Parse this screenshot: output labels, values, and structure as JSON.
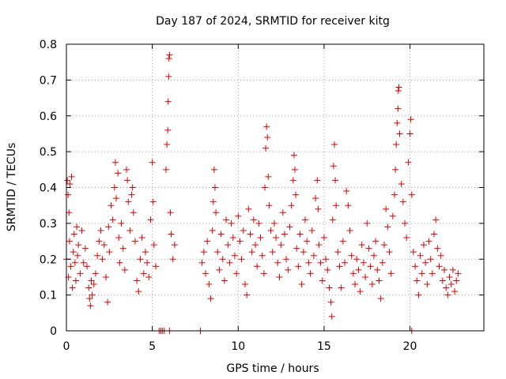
{
  "chart_data": {
    "type": "scatter",
    "title": "Day 187 of 2024, SRMTID for receiver kitg",
    "xlabel": "GPS time / hours",
    "ylabel": "SRMTID / TECUs",
    "xlim": [
      0,
      24.3
    ],
    "ylim": [
      0,
      0.8
    ],
    "xticks": [
      0,
      5,
      10,
      15,
      20
    ],
    "xtick_labels": [
      "0",
      "5",
      "10",
      "15",
      "20"
    ],
    "yticks": [
      0,
      0.1,
      0.2,
      0.3,
      0.4,
      0.5,
      0.6,
      0.7,
      0.8
    ],
    "ytick_labels": [
      "0",
      "0.1",
      "0.2",
      "0.3",
      "0.4",
      "0.5",
      "0.6",
      "0.7",
      "0.8"
    ],
    "grid": true,
    "marker": "+",
    "color": "#dd0000",
    "series": [
      {
        "name": "SRMTID kitg",
        "points": [
          [
            0.0,
            0.2
          ],
          [
            0.05,
            0.42
          ],
          [
            0.1,
            0.38
          ],
          [
            0.12,
            0.15
          ],
          [
            0.15,
            0.33
          ],
          [
            0.18,
            0.25
          ],
          [
            0.2,
            0.41
          ],
          [
            0.25,
            0.18
          ],
          [
            0.3,
            0.43
          ],
          [
            0.35,
            0.12
          ],
          [
            0.4,
            0.22
          ],
          [
            0.45,
            0.27
          ],
          [
            0.5,
            0.19
          ],
          [
            0.55,
            0.14
          ],
          [
            0.6,
            0.29
          ],
          [
            0.65,
            0.21
          ],
          [
            0.7,
            0.24
          ],
          [
            0.8,
            0.16
          ],
          [
            0.9,
            0.28
          ],
          [
            1.0,
            0.19
          ],
          [
            1.1,
            0.23
          ],
          [
            1.2,
            0.18
          ],
          [
            1.3,
            0.12
          ],
          [
            1.35,
            0.09
          ],
          [
            1.4,
            0.07
          ],
          [
            1.45,
            0.14
          ],
          [
            1.5,
            0.1
          ],
          [
            1.6,
            0.13
          ],
          [
            1.7,
            0.16
          ],
          [
            1.8,
            0.21
          ],
          [
            1.9,
            0.25
          ],
          [
            2.0,
            0.28
          ],
          [
            2.1,
            0.2
          ],
          [
            2.2,
            0.24
          ],
          [
            2.3,
            0.15
          ],
          [
            2.4,
            0.08
          ],
          [
            2.45,
            0.29
          ],
          [
            2.5,
            0.22
          ],
          [
            2.6,
            0.35
          ],
          [
            2.7,
            0.31
          ],
          [
            2.8,
            0.4
          ],
          [
            2.85,
            0.47
          ],
          [
            2.9,
            0.37
          ],
          [
            3.0,
            0.44
          ],
          [
            3.05,
            0.26
          ],
          [
            3.1,
            0.19
          ],
          [
            3.2,
            0.3
          ],
          [
            3.3,
            0.23
          ],
          [
            3.4,
            0.17
          ],
          [
            3.5,
            0.45
          ],
          [
            3.55,
            0.42
          ],
          [
            3.6,
            0.36
          ],
          [
            3.7,
            0.28
          ],
          [
            3.8,
            0.38
          ],
          [
            3.85,
            0.4
          ],
          [
            3.9,
            0.33
          ],
          [
            4.0,
            0.25
          ],
          [
            4.1,
            0.14
          ],
          [
            4.2,
            0.11
          ],
          [
            4.3,
            0.2
          ],
          [
            4.4,
            0.26
          ],
          [
            4.5,
            0.16
          ],
          [
            4.6,
            0.22
          ],
          [
            4.7,
            0.19
          ],
          [
            4.8,
            0.15
          ],
          [
            4.9,
            0.31
          ],
          [
            5.0,
            0.47
          ],
          [
            5.05,
            0.36
          ],
          [
            5.1,
            0.24
          ],
          [
            5.2,
            0.18
          ],
          [
            5.8,
            0.45
          ],
          [
            5.85,
            0.52
          ],
          [
            5.9,
            0.56
          ],
          [
            5.92,
            0.64
          ],
          [
            5.95,
            0.71
          ],
          [
            5.97,
            0.76
          ],
          [
            6.0,
            0.77
          ],
          [
            6.05,
            0.33
          ],
          [
            6.1,
            0.27
          ],
          [
            6.2,
            0.2
          ],
          [
            6.3,
            0.24
          ],
          [
            7.9,
            0.19
          ],
          [
            8.0,
            0.22
          ],
          [
            8.1,
            0.16
          ],
          [
            8.2,
            0.25
          ],
          [
            8.3,
            0.13
          ],
          [
            8.4,
            0.09
          ],
          [
            8.5,
            0.28
          ],
          [
            8.55,
            0.36
          ],
          [
            8.6,
            0.45
          ],
          [
            8.65,
            0.4
          ],
          [
            8.7,
            0.33
          ],
          [
            8.8,
            0.22
          ],
          [
            8.9,
            0.17
          ],
          [
            9.0,
            0.27
          ],
          [
            9.1,
            0.2
          ],
          [
            9.2,
            0.14
          ],
          [
            9.3,
            0.31
          ],
          [
            9.4,
            0.24
          ],
          [
            9.5,
            0.19
          ],
          [
            9.6,
            0.3
          ],
          [
            9.7,
            0.26
          ],
          [
            9.8,
            0.21
          ],
          [
            9.9,
            0.16
          ],
          [
            10.0,
            0.32
          ],
          [
            10.1,
            0.25
          ],
          [
            10.2,
            0.2
          ],
          [
            10.3,
            0.28
          ],
          [
            10.4,
            0.13
          ],
          [
            10.5,
            0.1
          ],
          [
            10.6,
            0.34
          ],
          [
            10.7,
            0.27
          ],
          [
            10.8,
            0.22
          ],
          [
            10.9,
            0.31
          ],
          [
            11.0,
            0.24
          ],
          [
            11.1,
            0.18
          ],
          [
            11.2,
            0.3
          ],
          [
            11.3,
            0.26
          ],
          [
            11.4,
            0.21
          ],
          [
            11.5,
            0.16
          ],
          [
            11.55,
            0.4
          ],
          [
            11.6,
            0.51
          ],
          [
            11.65,
            0.57
          ],
          [
            11.7,
            0.54
          ],
          [
            11.75,
            0.43
          ],
          [
            11.8,
            0.35
          ],
          [
            11.9,
            0.28
          ],
          [
            12.0,
            0.22
          ],
          [
            12.1,
            0.3
          ],
          [
            12.2,
            0.26
          ],
          [
            12.3,
            0.19
          ],
          [
            12.4,
            0.15
          ],
          [
            12.5,
            0.24
          ],
          [
            12.6,
            0.33
          ],
          [
            12.7,
            0.27
          ],
          [
            12.8,
            0.2
          ],
          [
            12.9,
            0.17
          ],
          [
            13.0,
            0.29
          ],
          [
            13.1,
            0.35
          ],
          [
            13.2,
            0.42
          ],
          [
            13.25,
            0.49
          ],
          [
            13.3,
            0.45
          ],
          [
            13.35,
            0.38
          ],
          [
            13.4,
            0.23
          ],
          [
            13.5,
            0.18
          ],
          [
            13.6,
            0.27
          ],
          [
            13.7,
            0.13
          ],
          [
            13.8,
            0.22
          ],
          [
            13.9,
            0.31
          ],
          [
            14.0,
            0.25
          ],
          [
            14.1,
            0.19
          ],
          [
            14.2,
            0.16
          ],
          [
            14.3,
            0.28
          ],
          [
            14.4,
            0.21
          ],
          [
            14.5,
            0.37
          ],
          [
            14.6,
            0.42
          ],
          [
            14.65,
            0.34
          ],
          [
            14.7,
            0.24
          ],
          [
            14.8,
            0.19
          ],
          [
            14.9,
            0.14
          ],
          [
            15.0,
            0.26
          ],
          [
            15.1,
            0.2
          ],
          [
            15.2,
            0.17
          ],
          [
            15.3,
            0.12
          ],
          [
            15.4,
            0.08
          ],
          [
            15.45,
            0.04
          ],
          [
            15.5,
            0.31
          ],
          [
            15.55,
            0.46
          ],
          [
            15.6,
            0.52
          ],
          [
            15.65,
            0.42
          ],
          [
            15.7,
            0.35
          ],
          [
            15.8,
            0.22
          ],
          [
            15.9,
            0.18
          ],
          [
            16.0,
            0.12
          ],
          [
            16.1,
            0.25
          ],
          [
            16.2,
            0.19
          ],
          [
            16.3,
            0.39
          ],
          [
            16.4,
            0.35
          ],
          [
            16.5,
            0.28
          ],
          [
            16.6,
            0.21
          ],
          [
            16.7,
            0.16
          ],
          [
            16.8,
            0.13
          ],
          [
            16.9,
            0.2
          ],
          [
            17.0,
            0.17
          ],
          [
            17.1,
            0.11
          ],
          [
            17.2,
            0.24
          ],
          [
            17.3,
            0.19
          ],
          [
            17.4,
            0.15
          ],
          [
            17.5,
            0.3
          ],
          [
            17.6,
            0.23
          ],
          [
            17.7,
            0.18
          ],
          [
            17.8,
            0.13
          ],
          [
            17.9,
            0.21
          ],
          [
            18.0,
            0.25
          ],
          [
            18.1,
            0.17
          ],
          [
            18.2,
            0.14
          ],
          [
            18.3,
            0.09
          ],
          [
            18.4,
            0.19
          ],
          [
            18.5,
            0.24
          ],
          [
            18.6,
            0.34
          ],
          [
            18.7,
            0.29
          ],
          [
            18.8,
            0.22
          ],
          [
            18.9,
            0.16
          ],
          [
            19.0,
            0.32
          ],
          [
            19.1,
            0.38
          ],
          [
            19.15,
            0.45
          ],
          [
            19.2,
            0.52
          ],
          [
            19.25,
            0.58
          ],
          [
            19.3,
            0.62
          ],
          [
            19.32,
            0.67
          ],
          [
            19.35,
            0.68
          ],
          [
            19.4,
            0.55
          ],
          [
            19.5,
            0.41
          ],
          [
            19.6,
            0.36
          ],
          [
            19.7,
            0.3
          ],
          [
            19.8,
            0.26
          ],
          [
            19.9,
            0.47
          ],
          [
            20.0,
            0.55
          ],
          [
            20.05,
            0.59
          ],
          [
            20.1,
            0.38
          ],
          [
            20.2,
            0.22
          ],
          [
            20.3,
            0.18
          ],
          [
            20.4,
            0.14
          ],
          [
            20.5,
            0.1
          ],
          [
            20.6,
            0.21
          ],
          [
            20.7,
            0.16
          ],
          [
            20.8,
            0.24
          ],
          [
            20.9,
            0.19
          ],
          [
            21.0,
            0.13
          ],
          [
            21.1,
            0.25
          ],
          [
            21.2,
            0.2
          ],
          [
            21.3,
            0.16
          ],
          [
            21.4,
            0.27
          ],
          [
            21.5,
            0.31
          ],
          [
            21.6,
            0.23
          ],
          [
            21.7,
            0.18
          ],
          [
            21.8,
            0.21
          ],
          [
            21.9,
            0.14
          ],
          [
            22.0,
            0.17
          ],
          [
            22.1,
            0.12
          ],
          [
            22.2,
            0.1
          ],
          [
            22.3,
            0.15
          ],
          [
            22.4,
            0.13
          ],
          [
            22.5,
            0.17
          ],
          [
            22.6,
            0.11
          ],
          [
            22.7,
            0.14
          ],
          [
            22.8,
            0.16
          ],
          [
            5.4,
            0.0
          ],
          [
            5.5,
            0.0
          ],
          [
            5.6,
            0.0
          ],
          [
            5.7,
            0.0
          ],
          [
            6.0,
            0.0
          ],
          [
            7.8,
            0.0
          ],
          [
            20.1,
            0.0
          ]
        ]
      }
    ]
  }
}
